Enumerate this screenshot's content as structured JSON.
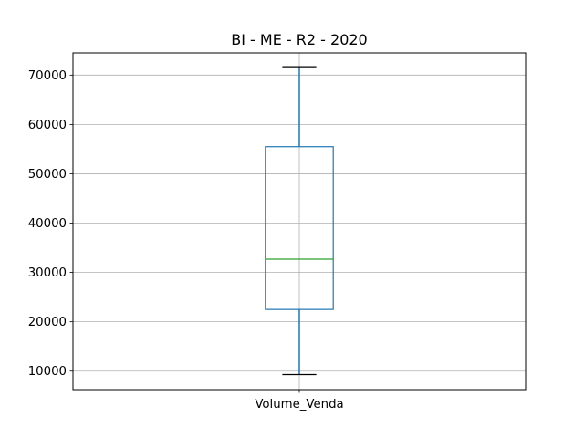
{
  "chart_data": {
    "type": "box",
    "title": "BI - ME - R2 - 2020",
    "categories": [
      "Volume_Venda"
    ],
    "boxes": [
      {
        "category": "Volume_Venda",
        "whisker_low": 9300,
        "q1": 22500,
        "median": 32700,
        "q3": 55500,
        "whisker_high": 71700
      }
    ],
    "ylim": [
      6250,
      74500
    ],
    "yticks": [
      10000,
      20000,
      30000,
      40000,
      50000,
      60000,
      70000
    ],
    "ytick_labels": [
      "10000",
      "20000",
      "30000",
      "40000",
      "50000",
      "60000",
      "70000"
    ],
    "grid": true,
    "colors": {
      "box": "#1f77b4",
      "median": "#2ca02c",
      "whisker_cap": "#000000",
      "grid": "#b0b0b0"
    }
  }
}
